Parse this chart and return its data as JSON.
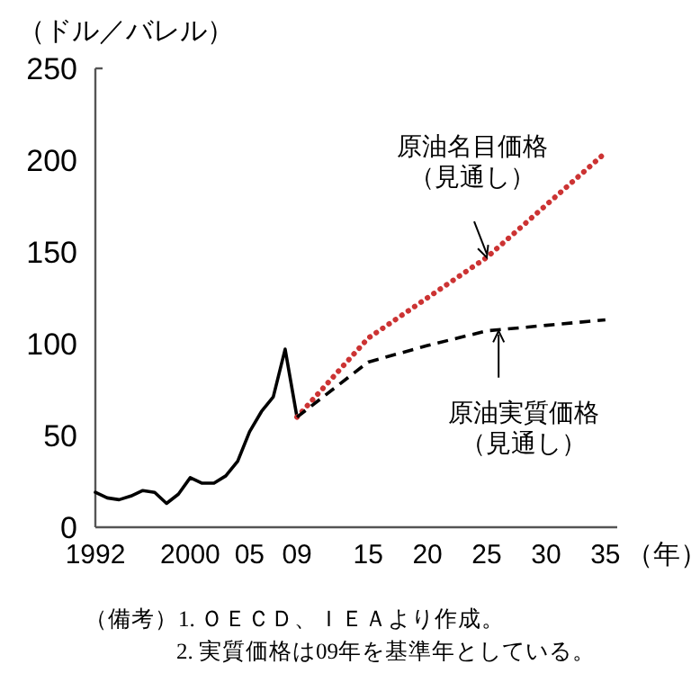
{
  "chart_data": {
    "type": "line",
    "ylabel": "（ドル／バレル）",
    "xlabel": "（年）",
    "xlim": [
      1992,
      2036
    ],
    "xticks": [
      {
        "value": 1992,
        "label": "1992"
      },
      {
        "value": 2000,
        "label": "2000"
      },
      {
        "value": 2005,
        "label": "05"
      },
      {
        "value": 2009,
        "label": "09"
      },
      {
        "value": 2015,
        "label": "15"
      },
      {
        "value": 2020,
        "label": "20"
      },
      {
        "value": 2025,
        "label": "25"
      },
      {
        "value": 2030,
        "label": "30"
      },
      {
        "value": 2035,
        "label": "35"
      }
    ],
    "ylim": [
      0,
      250
    ],
    "yticks": [
      0,
      50,
      100,
      150,
      200,
      250
    ],
    "grid": false,
    "marker": "none",
    "series": [
      {
        "color": "#000000",
        "line_style": "solid",
        "x": [
          1992,
          1993,
          1994,
          1995,
          1996,
          1997,
          1998,
          1999,
          2000,
          2001,
          2002,
          2003,
          2004,
          2005,
          2006,
          2007,
          2008,
          2009
        ],
        "values": [
          19,
          16,
          15,
          17,
          20,
          19,
          13,
          18,
          27,
          24,
          24,
          28,
          36,
          52,
          63,
          71,
          97,
          60
        ]
      },
      {
        "color": "#cc3333",
        "line_style": "dotted",
        "x": [
          2009,
          2015,
          2025,
          2035
        ],
        "values": [
          60,
          103,
          147,
          204
        ]
      },
      {
        "color": "#000000",
        "line_style": "dashed",
        "x": [
          2009,
          2015,
          2020,
          2025,
          2030,
          2035
        ],
        "values": [
          60,
          90,
          99,
          107,
          110,
          113
        ]
      }
    ],
    "annotations": [
      {
        "text": "原油名目価格（見通し）",
        "x": 2025,
        "y": 147
      },
      {
        "text": "原油実質価格（見通し）",
        "x": 2026,
        "y": 107
      },
      "（備考）1.  ＯＥＣＤ、ＩＥＡより作成。",
      "2.  実質価格は09年を基準年としている。"
    ]
  }
}
